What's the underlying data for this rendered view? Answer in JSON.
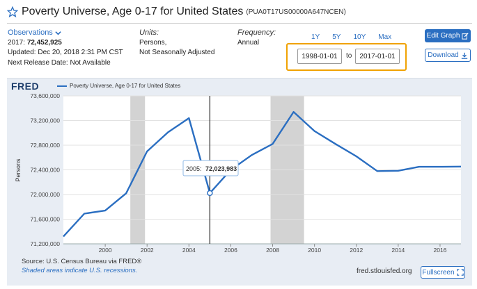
{
  "header": {
    "title": "Poverty Universe, Age 0-17 for United States",
    "code": "(PUA0T17US00000A647NCEN)"
  },
  "observations": {
    "link_label": "Observations",
    "latest_prefix": "2017:",
    "latest_value": "72,452,925",
    "updated": "Updated: Dec 20, 2018 2:31 PM CST",
    "next_release": "Next Release Date: Not Available"
  },
  "units": {
    "label": "Units:",
    "line1": "Persons,",
    "line2": "Not Seasonally Adjusted"
  },
  "frequency": {
    "label": "Frequency:",
    "value": "Annual"
  },
  "ranges": [
    "1Y",
    "5Y",
    "10Y",
    "Max"
  ],
  "dates": {
    "start": "1998-01-01",
    "to_label": "to",
    "end": "2017-01-01"
  },
  "buttons": {
    "edit_graph": "Edit Graph",
    "download": "Download",
    "fullscreen": "Fullscreen"
  },
  "graph": {
    "logo": "FRED",
    "legend": "Poverty Universe, Age 0-17 for United States",
    "tooltip_year": "2005:",
    "tooltip_value": "72,023,983",
    "source": "Source: U.S. Census Bureau via FRED®",
    "shaded_note": "Shaded areas indicate U.S. recessions.",
    "url": "fred.stlouisfed.org"
  },
  "colors": {
    "line": "#2a6ec1",
    "recession": "#d3d3d3",
    "highlight": "#f0a202"
  },
  "chart_data": {
    "type": "line",
    "ylabel": "Persons",
    "x": [
      1998,
      1999,
      2000,
      2001,
      2002,
      2003,
      2004,
      2005,
      2006,
      2007,
      2008,
      2009,
      2010,
      2011,
      2012,
      2013,
      2014,
      2015,
      2016,
      2017
    ],
    "series": [
      {
        "values": [
          71320000,
          71690000,
          71740000,
          72020000,
          72700000,
          73010000,
          73240000,
          72023983,
          72400000,
          72640000,
          72820000,
          73340000,
          73030000,
          72820000,
          72620000,
          72380000,
          72385000,
          72450000,
          72450000,
          72452925
        ]
      }
    ],
    "yticks": [
      71200000,
      71600000,
      72000000,
      72400000,
      72800000,
      73200000,
      73600000
    ],
    "ytick_labels": [
      "71,200,000",
      "71,600,000",
      "72,000,000",
      "72,400,000",
      "72,800,000",
      "73,200,000",
      "73,600,000"
    ],
    "xticks": [
      2000,
      2002,
      2004,
      2006,
      2008,
      2010,
      2012,
      2014,
      2016
    ],
    "ylim": [
      71200000,
      73600000
    ],
    "xlim": [
      1998,
      2017
    ],
    "recessions": [
      [
        2001.2,
        2001.9
      ],
      [
        2007.9,
        2009.5
      ]
    ],
    "highlight_x": 2005
  }
}
